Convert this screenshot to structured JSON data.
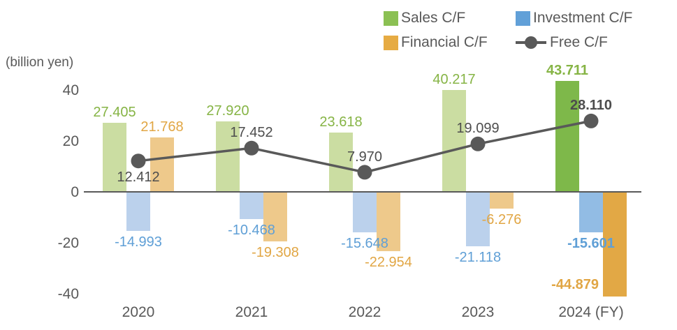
{
  "unit_label": "(billion yen)",
  "legend": [
    {
      "label": "Sales C/F",
      "marker": "square",
      "swatch": "#8bc053"
    },
    {
      "label": "Investment C/F",
      "marker": "square",
      "swatch": "#61a0d8"
    },
    {
      "label": "Financial C/F",
      "marker": "square",
      "swatch": "#e6ab43"
    },
    {
      "label": "Free C/F",
      "marker": "line-dot",
      "swatch": "#595959"
    }
  ],
  "chart_data": {
    "type": "bar",
    "subtype": "grouped bars with overlaid line",
    "title": "",
    "ylabel": "(billion yen)",
    "categories": [
      "2020",
      "2021",
      "2022",
      "2023",
      "2024 (FY)"
    ],
    "series": [
      {
        "name": "Sales C/F",
        "type": "bar",
        "values": [
          27.405,
          27.92,
          23.618,
          40.217,
          43.711
        ],
        "labels": [
          "27.405",
          "27.920",
          "23.618",
          "40.217",
          "43.711"
        ],
        "color_normal": "#cbdda2",
        "color_highlight": "#7eb84a",
        "label_color": "#86b445"
      },
      {
        "name": "Investment C/F",
        "type": "bar",
        "values": [
          -14.993,
          -10.468,
          -15.648,
          -21.118,
          -15.601
        ],
        "labels": [
          "-14.993",
          "-10.468",
          "-15.648",
          "-21.118",
          "-15.601"
        ],
        "color_normal": "#bbd1ec",
        "color_highlight": "#92bce4",
        "label_color": "#5f9fd6"
      },
      {
        "name": "Financial C/F",
        "type": "bar",
        "values": [
          21.768,
          -19.308,
          -22.954,
          -6.276,
          -44.879
        ],
        "labels": [
          "21.768",
          "-19.308",
          "-22.954",
          "-6.276",
          "-44.879"
        ],
        "color_normal": "#eec98b",
        "color_highlight": "#e2a845",
        "label_color": "#e1a644"
      },
      {
        "name": "Free C/F",
        "type": "line",
        "values": [
          12.412,
          17.452,
          7.97,
          19.099,
          28.11
        ],
        "labels": [
          "12.412",
          "17.452",
          "7.970",
          "19.099",
          "28.110"
        ],
        "line_color": "#595959",
        "label_color": "#4d4d4d"
      }
    ],
    "highlight_category_index": 4,
    "yticks": [
      "40",
      "20",
      "0",
      "-20",
      "-40"
    ],
    "ytick_values": [
      40,
      20,
      0,
      -20,
      -40
    ],
    "ylim": [
      -41,
      47
    ],
    "grid": "off",
    "legend_position": "top-right",
    "free_label_positions": [
      "below",
      "above",
      "above",
      "above",
      "above"
    ],
    "axis_color": "#595959"
  }
}
